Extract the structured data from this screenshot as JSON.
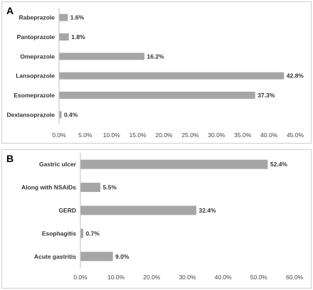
{
  "chart_data": [
    {
      "panel": "A",
      "type": "bar",
      "orientation": "horizontal",
      "categories": [
        "Rabeprazole",
        "Pantoprazole",
        "Omeprazole",
        "Lansoprazole",
        "Esomeprazole",
        "Dexlansoprazole"
      ],
      "values": [
        1.6,
        1.8,
        16.2,
        42.8,
        37.3,
        0.4
      ],
      "value_labels": [
        "1.6%",
        "1.8%",
        "16.2%",
        "42.8%",
        "37.3%",
        "0.4%"
      ],
      "xticks": [
        "0.0%",
        "5.0%",
        "10.0%",
        "15.0%",
        "20.0%",
        "25.0%",
        "30.0%",
        "35.0%",
        "40.0%",
        "45.0%"
      ],
      "xlim": [
        0,
        45
      ],
      "bar_color": "#a6a6a6",
      "grid": false,
      "legend": "none"
    },
    {
      "panel": "B",
      "type": "bar",
      "orientation": "horizontal",
      "categories": [
        "Gastric ulcer",
        "Along with NSAIDs",
        "GERD",
        "Esophagitis",
        "Acute gastritis"
      ],
      "values": [
        52.4,
        5.5,
        32.4,
        0.7,
        9.0
      ],
      "value_labels": [
        "52.4%",
        "5.5%",
        "32.4%",
        "0.7%",
        "9.0%"
      ],
      "xticks": [
        "0.0%",
        "10.0%",
        "20.0%",
        "30.0%",
        "40.0%",
        "50.0%",
        "60.0%"
      ],
      "xlim": [
        0,
        60
      ],
      "bar_color": "#a6a6a6",
      "grid": false,
      "legend": "none"
    }
  ]
}
